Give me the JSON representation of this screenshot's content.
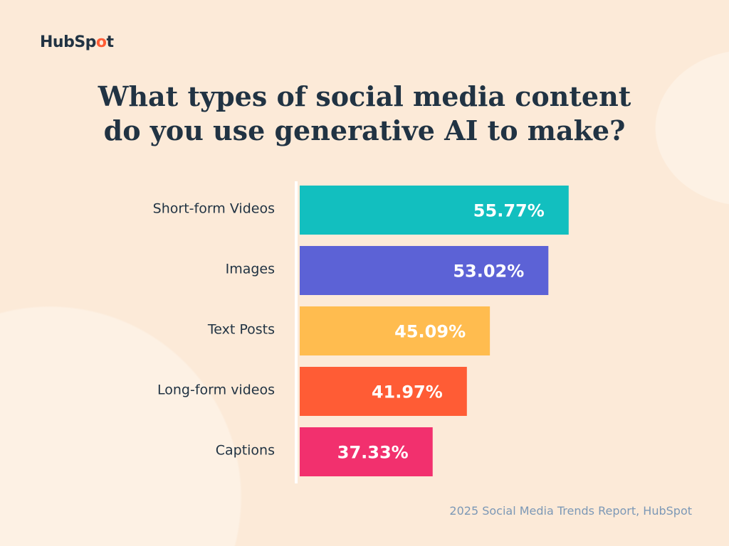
{
  "brand": {
    "logo_text": "HubSpot"
  },
  "chart_data": {
    "type": "bar",
    "orientation": "horizontal",
    "title": "What types of social media content do you use generative AI to make?",
    "title_lines": [
      "What types of social media content",
      "do you use generative AI to make?"
    ],
    "categories": [
      "Short-form Videos",
      "Images",
      "Text Posts",
      "Long-form videos",
      "Captions"
    ],
    "values": [
      55.77,
      53.02,
      45.09,
      41.97,
      37.33
    ],
    "value_labels": [
      "55.77%",
      "53.02%",
      "45.09%",
      "41.97%",
      "37.33%"
    ],
    "colors": [
      "#12bfbf",
      "#5c62d6",
      "#ffbc4f",
      "#ff5c35",
      "#f2306e"
    ],
    "xlabel": "",
    "ylabel": "",
    "grid": false,
    "unit": "%"
  },
  "source": "2025 Social Media Trends Report, HubSpot",
  "colors": {
    "background": "#fcead8",
    "title": "#213343",
    "source": "#7c98b6",
    "accent": "#ff5c35"
  }
}
